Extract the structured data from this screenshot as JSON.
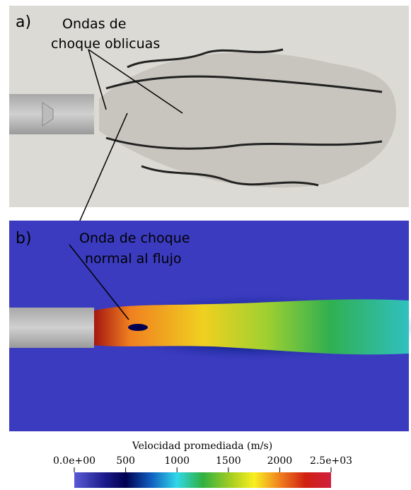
{
  "panels": [
    {
      "label": "a)",
      "annotation": [
        "Ondas de",
        "choque oblicuas"
      ]
    },
    {
      "label": "b)",
      "annotation": [
        "Onda de choque",
        "normal al flujo"
      ]
    }
  ],
  "colorbar": {
    "title": "Velocidad promediada (m/s)",
    "range": [
      0,
      2500
    ],
    "ticks": [
      {
        "value": 0,
        "label": "0.0e+00"
      },
      500,
      1000,
      1500,
      2000,
      {
        "value": 2500,
        "label": "2.5e+03"
      }
    ]
  }
}
